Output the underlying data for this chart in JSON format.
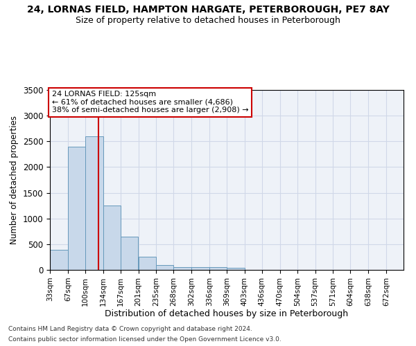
{
  "title": "24, LORNAS FIELD, HAMPTON HARGATE, PETERBOROUGH, PE7 8AY",
  "subtitle": "Size of property relative to detached houses in Peterborough",
  "xlabel": "Distribution of detached houses by size in Peterborough",
  "ylabel": "Number of detached properties",
  "footnote1": "Contains HM Land Registry data © Crown copyright and database right 2024.",
  "footnote2": "Contains public sector information licensed under the Open Government Licence v3.0.",
  "annotation_line1": "24 LORNAS FIELD: 125sqm",
  "annotation_line2": "← 61% of detached houses are smaller (4,686)",
  "annotation_line3": "38% of semi-detached houses are larger (2,908) →",
  "property_size": 125,
  "bar_edges": [
    33,
    67,
    100,
    134,
    167,
    201,
    235,
    268,
    302,
    336,
    369,
    403,
    436,
    470,
    504,
    537,
    571,
    604,
    638,
    672,
    705
  ],
  "bar_values": [
    390,
    2400,
    2600,
    1250,
    640,
    260,
    100,
    60,
    55,
    50,
    35,
    0,
    0,
    0,
    0,
    0,
    0,
    0,
    0,
    0
  ],
  "bar_color": "#c8d8ea",
  "bar_edgecolor": "#6699bb",
  "redline_color": "#cc0000",
  "ylim": [
    0,
    3500
  ],
  "yticks": [
    0,
    500,
    1000,
    1500,
    2000,
    2500,
    3000,
    3500
  ],
  "grid_color": "#d0d8e8",
  "bg_color": "#eef2f8",
  "annotation_box_color": "#ffffff",
  "annotation_box_edgecolor": "#cc0000",
  "figwidth": 6.0,
  "figheight": 5.0,
  "dpi": 100
}
